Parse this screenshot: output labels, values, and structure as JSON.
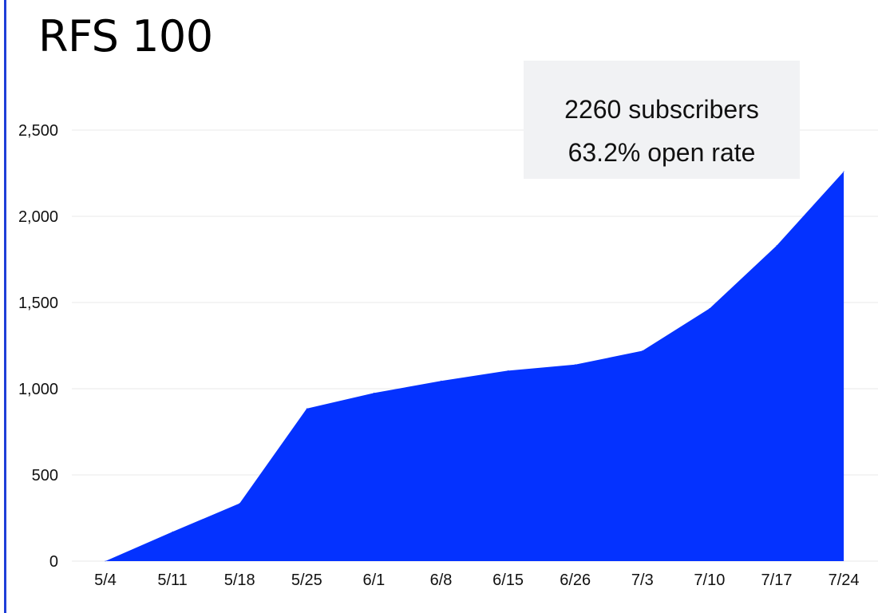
{
  "title": "RFS 100",
  "stats": {
    "subscribers": "2260 subscribers",
    "open_rate": "63.2% open rate"
  },
  "colors": {
    "accent": "#0432ff",
    "border": "#1f3fd8",
    "gridline": "#e8e8e8",
    "stats_background": "#f1f2f4"
  },
  "chart_data": {
    "type": "area",
    "title": "RFS 100",
    "xlabel": "",
    "ylabel": "",
    "categories": [
      "5/4",
      "5/11",
      "5/18",
      "5/25",
      "6/1",
      "6/8",
      "6/15",
      "6/26",
      "7/3",
      "7/10",
      "7/17",
      "7/24"
    ],
    "series": [
      {
        "values": [
          0,
          170,
          335,
          885,
          975,
          1045,
          1105,
          1140,
          1220,
          1465,
          1830,
          2260
        ],
        "color": "#0432ff"
      }
    ],
    "ylim": [
      0,
      2750
    ],
    "yticks": [
      0,
      500,
      1000,
      1500,
      2000,
      2500
    ],
    "ytick_labels": [
      "0",
      "500",
      "1,000",
      "1,500",
      "2,000",
      "2,500"
    ],
    "grid": true,
    "legend": "none"
  }
}
